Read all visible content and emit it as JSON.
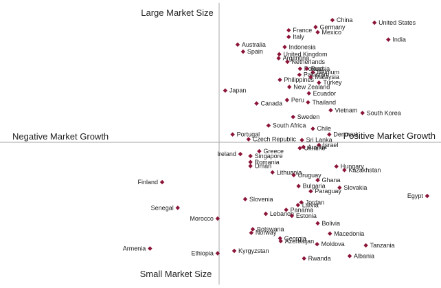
{
  "chart_data": {
    "type": "scatter",
    "x_axis": {
      "negative_label": "Negative Market Growth",
      "positive_label": "Positive Market Growth"
    },
    "y_axis": {
      "positive_label": "Large Market Size",
      "negative_label": "Small Market Size"
    },
    "grid": false,
    "legend": "none",
    "marker_color": "#8b1538",
    "axis_color": "#a6a6a6",
    "points": [
      {
        "label": "China",
        "x": 0.539,
        "y": 0.926
      },
      {
        "label": "United States",
        "x": 0.739,
        "y": 0.906
      },
      {
        "label": "Germany",
        "x": 0.459,
        "y": 0.873
      },
      {
        "label": "France",
        "x": 0.331,
        "y": 0.849
      },
      {
        "label": "Mexico",
        "x": 0.469,
        "y": 0.834
      },
      {
        "label": "Italy",
        "x": 0.331,
        "y": 0.799
      },
      {
        "label": "India",
        "x": 0.805,
        "y": 0.778
      },
      {
        "label": "Australia",
        "x": 0.088,
        "y": 0.74
      },
      {
        "label": "Indonesia",
        "x": 0.312,
        "y": 0.722
      },
      {
        "label": "Spain",
        "x": 0.114,
        "y": 0.687
      },
      {
        "label": "United Kingdom",
        "x": 0.286,
        "y": 0.667
      },
      {
        "label": "Argentina",
        "x": 0.283,
        "y": 0.637
      },
      {
        "label": "Netherlands",
        "x": 0.325,
        "y": 0.61
      },
      {
        "label": "Poland",
        "x": 0.385,
        "y": 0.557
      },
      {
        "label": "Russia",
        "x": 0.417,
        "y": 0.557
      },
      {
        "label": "Belgium",
        "x": 0.446,
        "y": 0.53
      },
      {
        "label": "Pakistan",
        "x": 0.382,
        "y": 0.512
      },
      {
        "label": "Malaysia",
        "x": 0.436,
        "y": 0.495
      },
      {
        "label": "Philippines",
        "x": 0.289,
        "y": 0.473
      },
      {
        "label": "Turkey",
        "x": 0.475,
        "y": 0.452
      },
      {
        "label": "New Zealand",
        "x": 0.334,
        "y": 0.419
      },
      {
        "label": "Japan",
        "x": 0.029,
        "y": 0.392
      },
      {
        "label": "Ecuador",
        "x": 0.427,
        "y": 0.371
      },
      {
        "label": "Peru",
        "x": 0.323,
        "y": 0.32
      },
      {
        "label": "Thailand",
        "x": 0.423,
        "y": 0.303
      },
      {
        "label": "Canada",
        "x": 0.178,
        "y": 0.294
      },
      {
        "label": "Vietnam",
        "x": 0.531,
        "y": 0.243
      },
      {
        "label": "South Korea",
        "x": 0.682,
        "y": 0.222
      },
      {
        "label": "Sweden",
        "x": 0.352,
        "y": 0.192
      },
      {
        "label": "South Africa",
        "x": 0.235,
        "y": 0.127
      },
      {
        "label": "Chile",
        "x": 0.446,
        "y": 0.103
      },
      {
        "label": "Portugal",
        "x": 0.064,
        "y": 0.059
      },
      {
        "label": "Denmark",
        "x": 0.524,
        "y": 0.059
      },
      {
        "label": "Czech Republic",
        "x": 0.14,
        "y": 0.023
      },
      {
        "label": "Sri Lanka",
        "x": 0.394,
        "y": 0.017
      },
      {
        "label": "Ukraine",
        "x": 0.384,
        "y": -0.044
      },
      {
        "label": "Greece",
        "x": 0.191,
        "y": -0.068
      },
      {
        "label": "Israel",
        "x": 0.475,
        "y": -0.021
      },
      {
        "label": "Austria",
        "x": 0.401,
        "y": -0.036
      },
      {
        "label": "Ireland",
        "x": 0.101,
        "y": -0.089
      },
      {
        "label": "Singapore",
        "x": 0.149,
        "y": -0.104
      },
      {
        "label": "Romania",
        "x": 0.149,
        "y": -0.15
      },
      {
        "label": "Oman",
        "x": 0.149,
        "y": -0.18
      },
      {
        "label": "Lithuania",
        "x": 0.254,
        "y": -0.228
      },
      {
        "label": "Hungary",
        "x": 0.558,
        "y": -0.183
      },
      {
        "label": "Kazakhstan",
        "x": 0.596,
        "y": -0.21
      },
      {
        "label": "Uruguay",
        "x": 0.355,
        "y": -0.249
      },
      {
        "label": "Ghana",
        "x": 0.469,
        "y": -0.287
      },
      {
        "label": "Finland",
        "x": -0.271,
        "y": -0.302
      },
      {
        "label": "Bulgaria",
        "x": 0.378,
        "y": -0.332
      },
      {
        "label": "Slovakia",
        "x": 0.573,
        "y": -0.344
      },
      {
        "label": "Paraguay",
        "x": 0.436,
        "y": -0.371
      },
      {
        "label": "Egypt",
        "x": 0.99,
        "y": -0.407
      },
      {
        "label": "Slovenia",
        "x": 0.124,
        "y": -0.431
      },
      {
        "label": "Jordan",
        "x": 0.391,
        "y": -0.455
      },
      {
        "label": "Latvia",
        "x": 0.375,
        "y": -0.476
      },
      {
        "label": "Senegal",
        "x": -0.197,
        "y": -0.497
      },
      {
        "label": "Panama",
        "x": 0.319,
        "y": -0.512
      },
      {
        "label": "Lebanon",
        "x": 0.222,
        "y": -0.542
      },
      {
        "label": "Estonia",
        "x": 0.346,
        "y": -0.557
      },
      {
        "label": "Morocco",
        "x": -0.007,
        "y": -0.578
      },
      {
        "label": "Bolivia",
        "x": 0.469,
        "y": -0.614
      },
      {
        "label": "Botswana",
        "x": 0.16,
        "y": -0.659
      },
      {
        "label": "Norway",
        "x": 0.153,
        "y": -0.686
      },
      {
        "label": "Macedonia",
        "x": 0.527,
        "y": -0.692
      },
      {
        "label": "Georgia",
        "x": 0.29,
        "y": -0.728
      },
      {
        "label": "Azerbaijan",
        "x": 0.293,
        "y": -0.749
      },
      {
        "label": "Moldova",
        "x": 0.466,
        "y": -0.772
      },
      {
        "label": "Tanzania",
        "x": 0.698,
        "y": -0.781
      },
      {
        "label": "Armenia",
        "x": -0.329,
        "y": -0.805
      },
      {
        "label": "Kyrgyzstan",
        "x": 0.072,
        "y": -0.823
      },
      {
        "label": "Ethiopia",
        "x": -0.007,
        "y": -0.841
      },
      {
        "label": "Albania",
        "x": 0.621,
        "y": -0.862
      },
      {
        "label": "Rwanda",
        "x": 0.404,
        "y": -0.88
      }
    ]
  }
}
